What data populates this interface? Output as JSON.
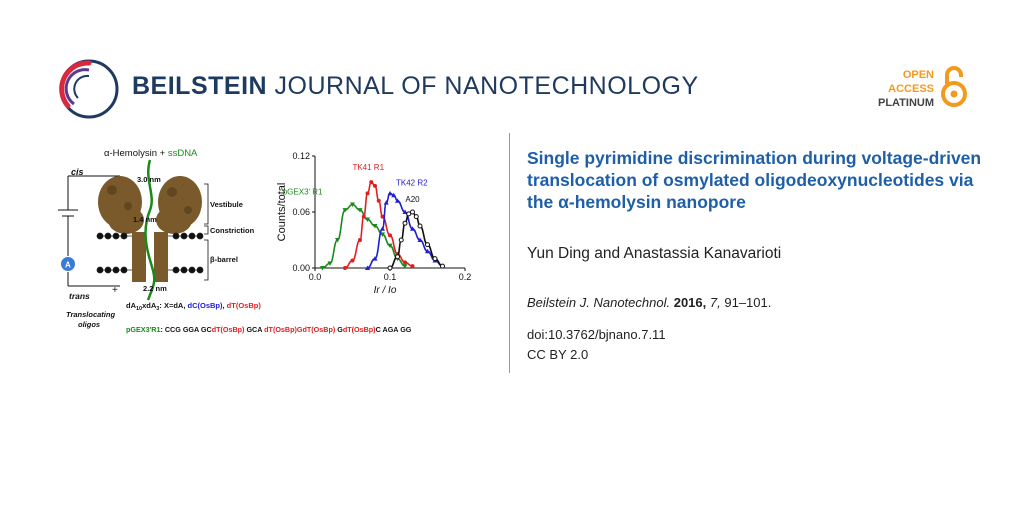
{
  "header": {
    "journal_name_bold": "BEILSTEIN",
    "journal_name_rest": " JOURNAL OF NANOTECHNOLOGY",
    "oa_open": "OPEN",
    "oa_access": "ACCESS",
    "oa_tier": "PLATINUM"
  },
  "article": {
    "title": "Single pyrimidine discrimination during voltage-driven translocation of osmylated oligodeoxynucleotides via the α-hemolysin nanopore",
    "authors": "Yun Ding and Anastassia Kanavarioti",
    "citation_journal": "Beilstein J. Nanotechnol.",
    "citation_year": "2016,",
    "citation_volume": "7,",
    "citation_pages": "91–101.",
    "doi": "doi:10.3762/bjnano.7.11",
    "license": "CC BY 2.0"
  },
  "graphic": {
    "diagram": {
      "heading_prefix": "α-Hemolysin + ",
      "heading_ssdna": "ssDNA",
      "cis": "cis",
      "trans": "trans",
      "minus": "-",
      "plus": "+",
      "ammeter": "A",
      "width_top": "3.0 nm",
      "width_mid": "1.4 nm",
      "width_bottom": "2.2 nm",
      "vestibule": "Vestibule",
      "constriction": "Constriction",
      "beta_barrel": "β-barrel",
      "translocating": "Translocating",
      "oligos": "oligos",
      "formula_prefix": "dA",
      "formula_sub1": "10",
      "formula_mid": "xdA",
      "formula_sub2": "3",
      "formula_rest": ": X=dA, ",
      "formula_dc": "dC(OsBp)",
      "formula_comma": ", ",
      "formula_dt": "dT(OsBp)",
      "seq_label": "pGEX3'R1",
      "seq_parts": [
        {
          "t": ": CCG GGA GC",
          "c": "#111111"
        },
        {
          "t": "dT(OsBp)",
          "c": "#e02020"
        },
        {
          "t": " GCA ",
          "c": "#111111"
        },
        {
          "t": "dT(OsBp)GdT(OsBp)",
          "c": "#e02020"
        },
        {
          "t": "  G",
          "c": "#111111"
        },
        {
          "t": "dT(OsBp)",
          "c": "#e02020"
        },
        {
          "t": "C AGA GG",
          "c": "#111111"
        }
      ]
    },
    "chart_data": {
      "type": "line",
      "title": "",
      "xlabel": "Ir / Io",
      "ylabel": "Counts/total",
      "xlim": [
        0.0,
        0.2
      ],
      "ylim": [
        0.0,
        0.12
      ],
      "xticks": [
        "0.0",
        "0.1",
        "0.2"
      ],
      "yticks": [
        "0.00",
        "0.06",
        "0.12"
      ],
      "series": [
        {
          "name": "pGEX3' R1",
          "color": "#1a8a1a",
          "marker": "triangle-down",
          "x": [
            0.01,
            0.02,
            0.03,
            0.04,
            0.05,
            0.06,
            0.07,
            0.08,
            0.09,
            0.1,
            0.11,
            0.12
          ],
          "y": [
            0.0,
            0.005,
            0.03,
            0.062,
            0.068,
            0.062,
            0.052,
            0.045,
            0.036,
            0.024,
            0.01,
            0.002
          ]
        },
        {
          "name": "TK41 R1",
          "color": "#e02020",
          "marker": "circle",
          "x": [
            0.04,
            0.05,
            0.06,
            0.065,
            0.07,
            0.075,
            0.08,
            0.085,
            0.09,
            0.1,
            0.11,
            0.12,
            0.13
          ],
          "y": [
            0.0,
            0.008,
            0.03,
            0.055,
            0.08,
            0.092,
            0.088,
            0.072,
            0.055,
            0.035,
            0.015,
            0.006,
            0.002
          ]
        },
        {
          "name": "TK42 R2",
          "color": "#2020d0",
          "marker": "triangle-up",
          "x": [
            0.07,
            0.08,
            0.09,
            0.095,
            0.1,
            0.105,
            0.11,
            0.12,
            0.13,
            0.14,
            0.15,
            0.16,
            0.17
          ],
          "y": [
            0.0,
            0.01,
            0.042,
            0.07,
            0.08,
            0.078,
            0.072,
            0.06,
            0.042,
            0.03,
            0.018,
            0.008,
            0.002
          ]
        },
        {
          "name": "A20",
          "color": "#111111",
          "marker": "circle-open",
          "x": [
            0.1,
            0.11,
            0.115,
            0.12,
            0.125,
            0.13,
            0.135,
            0.14,
            0.15,
            0.16,
            0.17
          ],
          "y": [
            0.0,
            0.012,
            0.03,
            0.048,
            0.058,
            0.06,
            0.055,
            0.045,
            0.025,
            0.01,
            0.002
          ]
        }
      ]
    }
  }
}
